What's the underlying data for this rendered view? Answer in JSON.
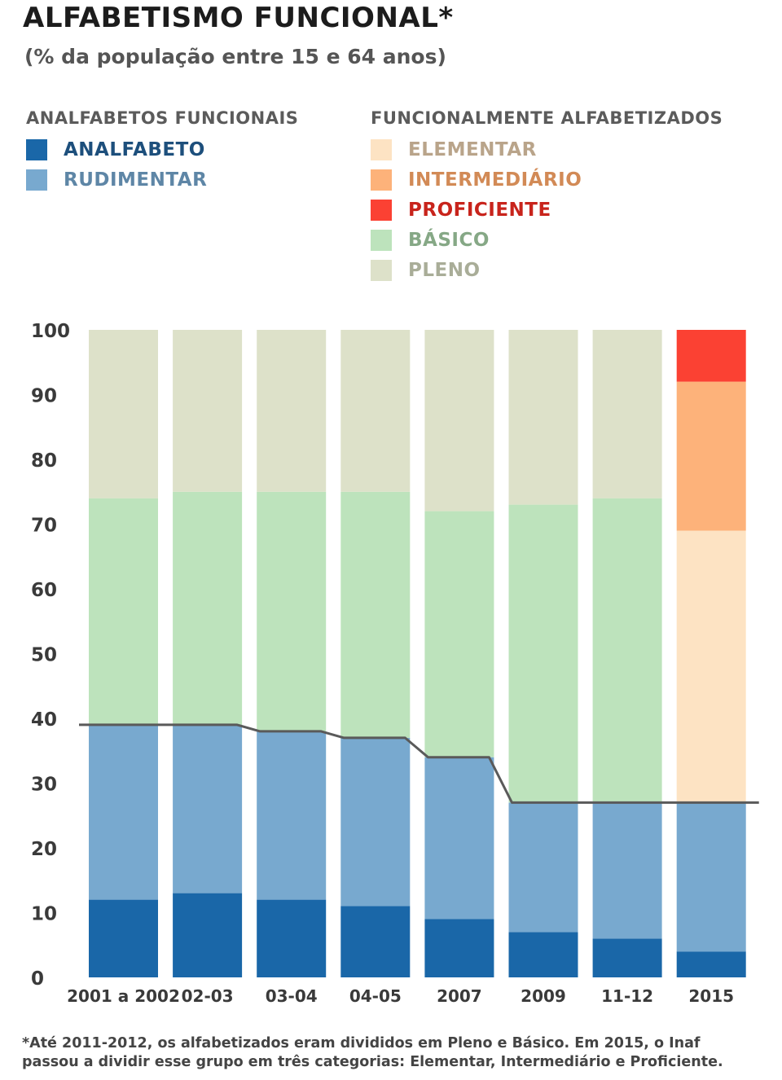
{
  "title": "ALFABETISMO FUNCIONAL*",
  "subtitle": "(% da população entre 15 e 64 anos)",
  "legend": {
    "groups": [
      {
        "heading": "ANALFABETOS FUNCIONAIS",
        "items": [
          {
            "label": "ANALFABETO",
            "color": "#1a67a8",
            "text_color": "#1d4f7c"
          },
          {
            "label": "RUDIMENTAR",
            "color": "#78a9cf",
            "text_color": "#5e86a6"
          }
        ]
      },
      {
        "heading": "FUNCIONALMENTE ALFABETIZADOS",
        "items": [
          {
            "label": "ELEMENTAR",
            "color": "#fde3c3",
            "text_color": "#b9a48a"
          },
          {
            "label": "INTERMEDIÁRIO",
            "color": "#fdb27a",
            "text_color": "#d28a56"
          },
          {
            "label": "PROFICIENTE",
            "color": "#fb4133",
            "text_color": "#c8241c"
          },
          {
            "label": "BÁSICO",
            "color": "#bde3bc",
            "text_color": "#86a886"
          },
          {
            "label": "PLENO",
            "color": "#dde1c9",
            "text_color": "#a9ad98"
          }
        ]
      }
    ]
  },
  "chart_data": {
    "type": "bar",
    "stacked": true,
    "categories": [
      "2001 a 2002",
      "02-03",
      "03-04",
      "04-05",
      "2007",
      "2009",
      "11-12",
      "2015"
    ],
    "ylim": [
      0,
      100
    ],
    "yticks": [
      0,
      10,
      20,
      30,
      40,
      50,
      60,
      70,
      80,
      90,
      100
    ],
    "series": [
      {
        "name": "ANALFABETO",
        "color": "#1a67a8",
        "values": [
          12,
          13,
          12,
          11,
          9,
          7,
          6,
          4
        ]
      },
      {
        "name": "RUDIMENTAR",
        "color": "#78a9cf",
        "values": [
          27,
          26,
          26,
          26,
          25,
          20,
          21,
          23
        ]
      },
      {
        "name": "ELEMENTAR",
        "color": "#fde3c3",
        "values": [
          0,
          0,
          0,
          0,
          0,
          0,
          0,
          42
        ]
      },
      {
        "name": "INTERMEDIÁRIO",
        "color": "#fdb27a",
        "values": [
          0,
          0,
          0,
          0,
          0,
          0,
          0,
          23
        ]
      },
      {
        "name": "PROFICIENTE",
        "color": "#fb4133",
        "values": [
          0,
          0,
          0,
          0,
          0,
          0,
          0,
          8
        ]
      },
      {
        "name": "BÁSICO",
        "color": "#bde3bc",
        "values": [
          35,
          36,
          37,
          38,
          38,
          46,
          47,
          0
        ]
      },
      {
        "name": "PLENO",
        "color": "#dde1c9",
        "values": [
          26,
          25,
          25,
          25,
          28,
          27,
          26,
          0
        ]
      }
    ],
    "threshold_line": [
      39,
      39,
      38,
      37,
      34,
      27,
      27,
      27
    ],
    "grid": false
  },
  "footnote": [
    "*Até 2011-2012, os alfabetizados eram divididos em Pleno e Básico. Em 2015, o Inaf",
    "passou a dividir esse grupo em três categorias: Elementar, Intermediário e Proficiente."
  ]
}
